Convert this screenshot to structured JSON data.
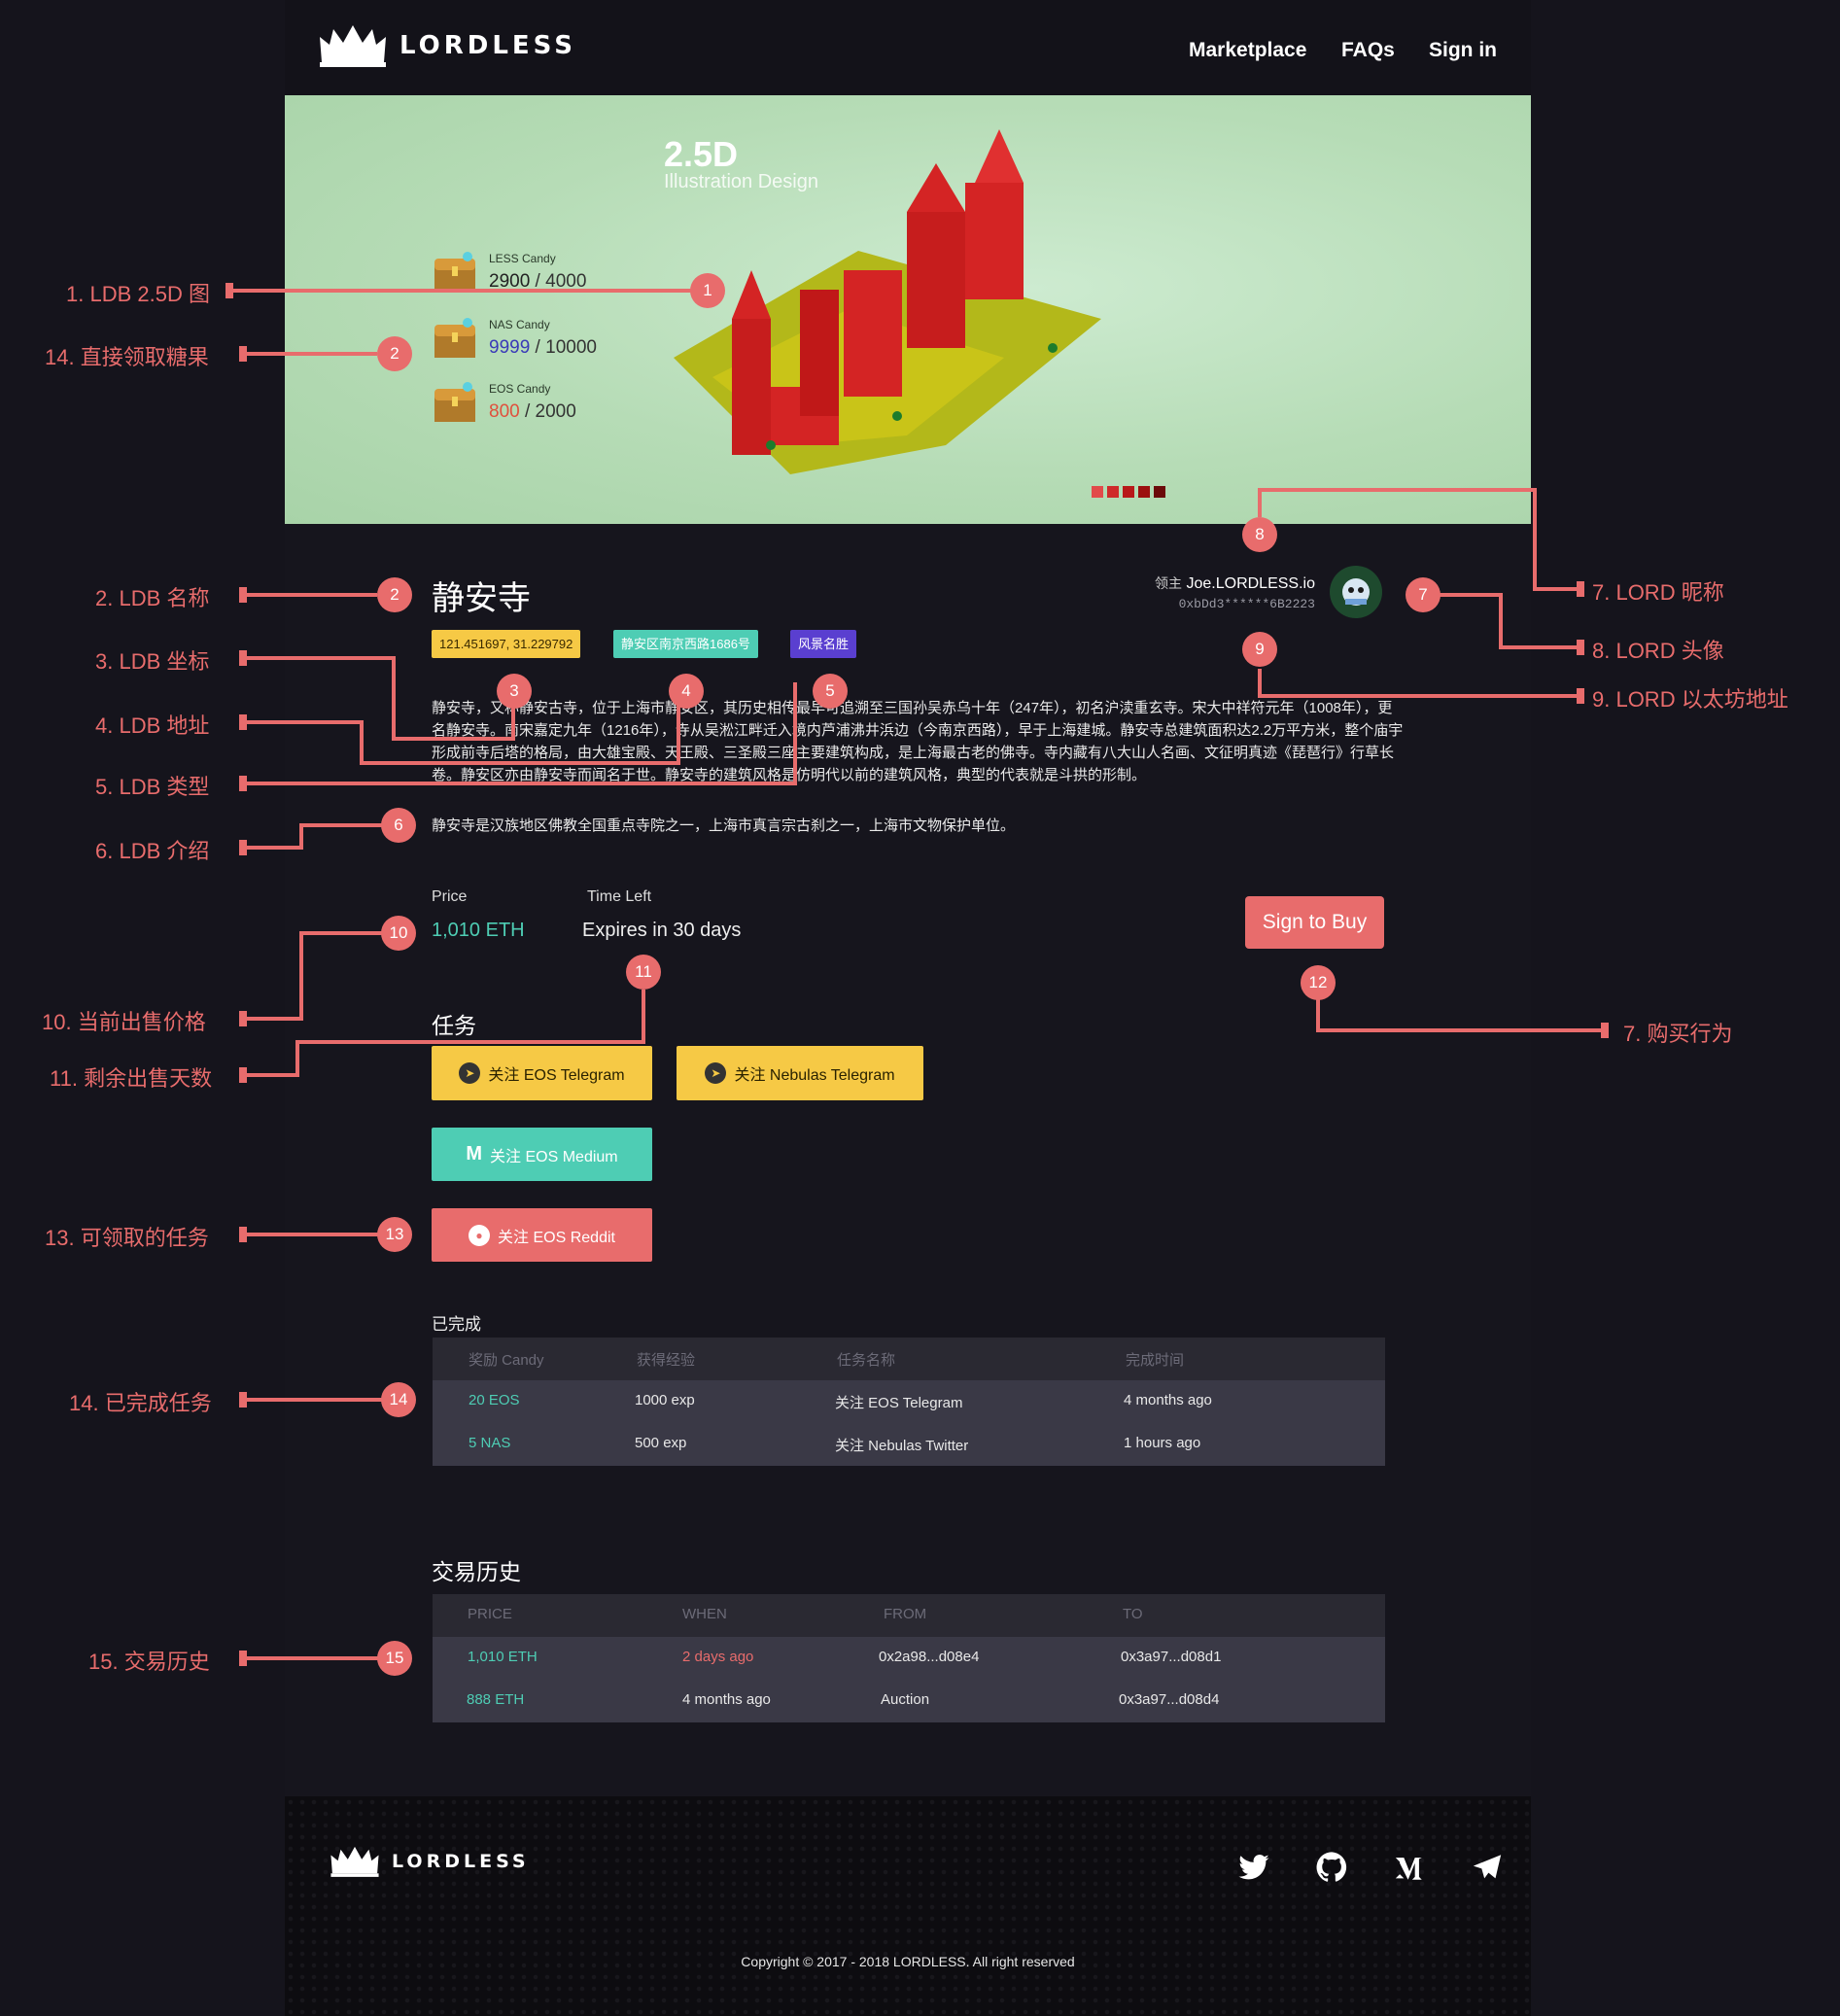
{
  "nav": {
    "brand": "LORDLESS",
    "items": [
      "Marketplace",
      "FAQs",
      "Sign in"
    ]
  },
  "hero": {
    "title": "2.5D",
    "subtitle": "Illustration Design",
    "candies": [
      {
        "name": "LESS Candy",
        "current": "2900",
        "total": "4000",
        "color": "#333333"
      },
      {
        "name": "NAS Candy",
        "current": "9999",
        "total": "10000",
        "color": "#3a3ab8"
      },
      {
        "name": "EOS Candy",
        "current": "800",
        "total": "2000",
        "color": "#e0503c"
      }
    ],
    "carousel_dot_colors": [
      "#e24a4a",
      "#cf2a2a",
      "#b81818",
      "#9c0f0f",
      "#6b0a0a"
    ]
  },
  "ldb": {
    "name": "静安寺",
    "coords": "121.451697, 31.229792",
    "address": "静安区南京西路1686号",
    "type": "风景名胜",
    "description": "静安寺，又称静安古寺，位于上海市静安区，其历史相传最早可追溯至三国孙吴赤乌十年（247年），初名沪渎重玄寺。宋大中祥符元年（1008年），更名静安寺。南宋嘉定九年（1216年），寺从吴淞江畔迁入境内芦浦沸井浜边（今南京西路），早于上海建城。静安寺总建筑面积达2.2万平方米，整个庙宇形成前寺后塔的格局，由大雄宝殿、天王殿、三圣殿三座主要建筑构成，是上海最古老的佛寺。寺内藏有八大山人名画、文征明真迹《琵琶行》行草长卷。静安区亦由静安寺而闻名于世。静安寺的建筑风格是仿明代以前的建筑风格，典型的代表就是斗拱的形制。",
    "description2": "静安寺是汉族地区佛教全国重点寺院之一，上海市真言宗古刹之一，上海市文物保护单位。"
  },
  "lord": {
    "prefix": "领主",
    "name": "Joe.LORDLESS.io",
    "address": "0xbDd3******6B2223"
  },
  "sale": {
    "price_label": "Price",
    "price": "1,010 ETH",
    "time_label": "Time Left",
    "time": "Expires in 30 days",
    "buy_button": "Sign to Buy"
  },
  "tasks": {
    "title": "任务",
    "buttons": [
      {
        "label": "关注 EOS Telegram",
        "icon": "telegram-icon"
      },
      {
        "label": "关注 Nebulas Telegram",
        "icon": "telegram-icon"
      },
      {
        "label": "关注 EOS Medium",
        "icon": "medium-icon"
      },
      {
        "label": "关注 EOS Reddit",
        "icon": "reddit-icon"
      }
    ]
  },
  "completed": {
    "title": "已完成",
    "headers": [
      "奖励 Candy",
      "获得经验",
      "任务名称",
      "完成时间"
    ],
    "rows": [
      [
        "20 EOS",
        "1000 exp",
        "关注 EOS Telegram",
        "4 months ago"
      ],
      [
        "5 NAS",
        "500 exp",
        "关注 Nebulas Twitter",
        "1 hours ago"
      ]
    ]
  },
  "history": {
    "title": "交易历史",
    "headers": [
      "PRICE",
      "WHEN",
      "FROM",
      "TO"
    ],
    "rows": [
      [
        "1,010 ETH",
        "2 days ago",
        "0x2a98...d08e4",
        "0x3a97...d08d1"
      ],
      [
        "888 ETH",
        "4 months ago",
        "Auction",
        "0x3a97...d08d4"
      ]
    ]
  },
  "footer": {
    "brand": "LORDLESS",
    "copyright": "Copyright © 2017 - 2018 LORDLESS. All right reserved",
    "icons": [
      "twitter-icon",
      "github-icon",
      "medium-icon",
      "telegram-icon"
    ]
  },
  "annotations": {
    "left": [
      "1. LDB 2.5D 图",
      "14. 直接领取糖果",
      "2. LDB 名称",
      "3. LDB 坐标",
      "4. LDB 地址",
      "5. LDB 类型",
      "6. LDB 介绍",
      "10. 当前出售价格",
      "11. 剩余出售天数",
      "13. 可领取的任务",
      "14. 已完成任务",
      "15. 交易历史"
    ],
    "right": [
      "7. LORD 昵称",
      "8. LORD 头像",
      "9. LORD 以太坊地址",
      "7. 购买行为"
    ],
    "pins": [
      "1",
      "2",
      "2",
      "3",
      "4",
      "5",
      "6",
      "7",
      "8",
      "9",
      "10",
      "11",
      "12",
      "13",
      "14",
      "15"
    ]
  },
  "colors": {
    "accent": "#e86c6c",
    "teal": "#4ecdb4",
    "yellow": "#f6c945",
    "purple": "#5a3fd0",
    "coral": "#e86c6c"
  }
}
